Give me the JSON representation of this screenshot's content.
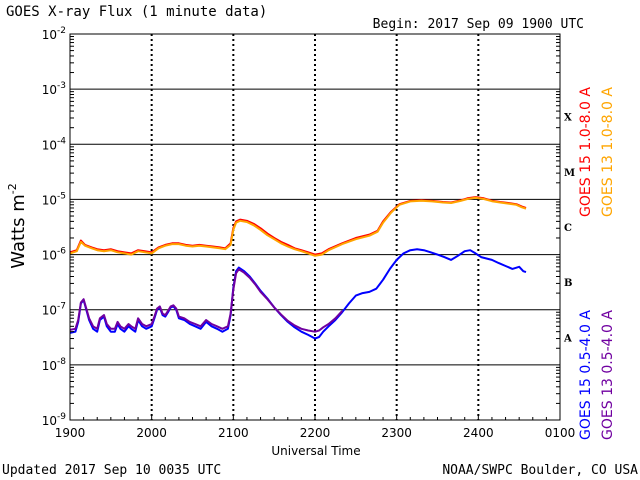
{
  "chart_data": {
    "type": "line",
    "title": "GOES X-ray Flux (1 minute data)",
    "begin_label": "Begin: 2017 Sep 09 1900 UTC",
    "updated_label": "Updated 2017 Sep 10 0035 UTC",
    "credit_label": "NOAA/SWPC Boulder, CO USA",
    "xlabel": "Universal Time",
    "ylabel": "Watts m",
    "ylabel_exponent": "-2",
    "x_ticks": [
      {
        "value": 0,
        "label": "1900"
      },
      {
        "value": 60,
        "label": "2000"
      },
      {
        "value": 120,
        "label": "2100"
      },
      {
        "value": 180,
        "label": "2200"
      },
      {
        "value": 240,
        "label": "2300"
      },
      {
        "value": 300,
        "label": "2400"
      },
      {
        "value": 360,
        "label": "0100"
      }
    ],
    "y_scale": "log",
    "y_ticks": [
      {
        "exp": -9,
        "label": "10",
        "sup": "-9"
      },
      {
        "exp": -8,
        "label": "10",
        "sup": "-8"
      },
      {
        "exp": -7,
        "label": "10",
        "sup": "-7"
      },
      {
        "exp": -6,
        "label": "10",
        "sup": "-6"
      },
      {
        "exp": -5,
        "label": "10",
        "sup": "-5"
      },
      {
        "exp": -4,
        "label": "10",
        "sup": "-4"
      },
      {
        "exp": -3,
        "label": "10",
        "sup": "-3"
      },
      {
        "exp": -2,
        "label": "10",
        "sup": "-2"
      }
    ],
    "flare_classes": [
      {
        "label": "X",
        "exp": -3.5
      },
      {
        "label": "M",
        "exp": -4.5
      },
      {
        "label": "C",
        "exp": -5.5
      },
      {
        "label": "B",
        "exp": -6.5
      },
      {
        "label": "A",
        "exp": -7.5
      }
    ],
    "series": [
      {
        "name": "GOES 15 1.0-8.0 A",
        "color": "#ff0000",
        "points": [
          [
            0,
            1.1e-06
          ],
          [
            5,
            1.2e-06
          ],
          [
            8,
            1.8e-06
          ],
          [
            11,
            1.5e-06
          ],
          [
            16,
            1.35e-06
          ],
          [
            20,
            1.25e-06
          ],
          [
            25,
            1.2e-06
          ],
          [
            30,
            1.25e-06
          ],
          [
            35,
            1.15e-06
          ],
          [
            40,
            1.1e-06
          ],
          [
            45,
            1.05e-06
          ],
          [
            50,
            1.2e-06
          ],
          [
            55,
            1.15e-06
          ],
          [
            60,
            1.1e-06
          ],
          [
            65,
            1.35e-06
          ],
          [
            70,
            1.5e-06
          ],
          [
            75,
            1.6e-06
          ],
          [
            80,
            1.6e-06
          ],
          [
            85,
            1.5e-06
          ],
          [
            90,
            1.45e-06
          ],
          [
            95,
            1.5e-06
          ],
          [
            100,
            1.45e-06
          ],
          [
            105,
            1.4e-06
          ],
          [
            110,
            1.35e-06
          ],
          [
            114,
            1.3e-06
          ],
          [
            118,
            1.6e-06
          ],
          [
            120,
            3e-06
          ],
          [
            122,
            4e-06
          ],
          [
            125,
            4.3e-06
          ],
          [
            130,
            4.1e-06
          ],
          [
            135,
            3.6e-06
          ],
          [
            140,
            3e-06
          ],
          [
            145,
            2.4e-06
          ],
          [
            150,
            2e-06
          ],
          [
            155,
            1.7e-06
          ],
          [
            160,
            1.5e-06
          ],
          [
            165,
            1.3e-06
          ],
          [
            170,
            1.2e-06
          ],
          [
            175,
            1.1e-06
          ],
          [
            180,
            1e-06
          ],
          [
            185,
            1.05e-06
          ],
          [
            190,
            1.25e-06
          ],
          [
            200,
            1.6e-06
          ],
          [
            210,
            2e-06
          ],
          [
            220,
            2.3e-06
          ],
          [
            226,
            2.7e-06
          ],
          [
            230,
            4e-06
          ],
          [
            236,
            6e-06
          ],
          [
            242,
            8.2e-06
          ],
          [
            250,
            9.4e-06
          ],
          [
            258,
            9.7e-06
          ],
          [
            266,
            9.4e-06
          ],
          [
            274,
            9e-06
          ],
          [
            280,
            8.8e-06
          ],
          [
            287,
            9.6e-06
          ],
          [
            292,
            1.05e-05
          ],
          [
            298,
            1.1e-05
          ],
          [
            304,
            1.05e-05
          ],
          [
            310,
            9.5e-06
          ],
          [
            316,
            9e-06
          ],
          [
            322,
            8.6e-06
          ],
          [
            328,
            8.2e-06
          ],
          [
            332,
            7.4e-06
          ],
          [
            335,
            7e-06
          ]
        ]
      },
      {
        "name": "GOES 13 1.0-8.0 A",
        "color": "#ffa500",
        "points": [
          [
            0,
            1.05e-06
          ],
          [
            5,
            1.15e-06
          ],
          [
            8,
            1.7e-06
          ],
          [
            11,
            1.45e-06
          ],
          [
            16,
            1.3e-06
          ],
          [
            20,
            1.2e-06
          ],
          [
            25,
            1.15e-06
          ],
          [
            30,
            1.2e-06
          ],
          [
            35,
            1.1e-06
          ],
          [
            40,
            1.05e-06
          ],
          [
            45,
            1e-06
          ],
          [
            50,
            1.15e-06
          ],
          [
            55,
            1.1e-06
          ],
          [
            60,
            1.05e-06
          ],
          [
            65,
            1.3e-06
          ],
          [
            70,
            1.45e-06
          ],
          [
            75,
            1.55e-06
          ],
          [
            80,
            1.55e-06
          ],
          [
            85,
            1.45e-06
          ],
          [
            90,
            1.4e-06
          ],
          [
            95,
            1.45e-06
          ],
          [
            100,
            1.4e-06
          ],
          [
            105,
            1.35e-06
          ],
          [
            110,
            1.3e-06
          ],
          [
            114,
            1.25e-06
          ],
          [
            118,
            1.5e-06
          ],
          [
            120,
            2.8e-06
          ],
          [
            122,
            3.8e-06
          ],
          [
            125,
            4.1e-06
          ],
          [
            130,
            3.9e-06
          ],
          [
            135,
            3.4e-06
          ],
          [
            140,
            2.8e-06
          ],
          [
            145,
            2.25e-06
          ],
          [
            150,
            1.9e-06
          ],
          [
            155,
            1.6e-06
          ],
          [
            160,
            1.4e-06
          ],
          [
            165,
            1.25e-06
          ],
          [
            170,
            1.15e-06
          ],
          [
            175,
            1.05e-06
          ],
          [
            180,
            9.5e-07
          ],
          [
            185,
            1e-06
          ],
          [
            190,
            1.2e-06
          ],
          [
            200,
            1.55e-06
          ],
          [
            210,
            1.9e-06
          ],
          [
            220,
            2.2e-06
          ],
          [
            226,
            2.6e-06
          ],
          [
            230,
            3.8e-06
          ],
          [
            236,
            5.8e-06
          ],
          [
            242,
            8e-06
          ],
          [
            250,
            9.2e-06
          ],
          [
            258,
            9.5e-06
          ],
          [
            266,
            9.2e-06
          ],
          [
            274,
            8.8e-06
          ],
          [
            280,
            8.6e-06
          ],
          [
            287,
            9.4e-06
          ],
          [
            292,
            1.02e-05
          ],
          [
            298,
            1.07e-05
          ],
          [
            304,
            1.02e-05
          ],
          [
            310,
            9.3e-06
          ],
          [
            316,
            8.8e-06
          ],
          [
            322,
            8.4e-06
          ],
          [
            328,
            8e-06
          ],
          [
            332,
            7.2e-06
          ],
          [
            335,
            6.8e-06
          ]
        ]
      },
      {
        "name": "GOES 15 0.5-4.0 A",
        "color": "#0000ff",
        "points": [
          [
            0,
            3.8e-08
          ],
          [
            4,
            4e-08
          ],
          [
            6,
            6e-08
          ],
          [
            8,
            1.3e-07
          ],
          [
            10,
            1.5e-07
          ],
          [
            12,
            1e-07
          ],
          [
            14,
            6.5e-08
          ],
          [
            17,
            4.5e-08
          ],
          [
            20,
            4e-08
          ],
          [
            22,
            6.5e-08
          ],
          [
            25,
            7.5e-08
          ],
          [
            27,
            5e-08
          ],
          [
            30,
            4e-08
          ],
          [
            33,
            4e-08
          ],
          [
            35,
            5.5e-08
          ],
          [
            37,
            4.5e-08
          ],
          [
            40,
            4e-08
          ],
          [
            43,
            5e-08
          ],
          [
            45,
            4.5e-08
          ],
          [
            48,
            4e-08
          ],
          [
            50,
            6.5e-08
          ],
          [
            53,
            5e-08
          ],
          [
            56,
            4.5e-08
          ],
          [
            60,
            5e-08
          ],
          [
            62,
            7e-08
          ],
          [
            64,
            1e-07
          ],
          [
            66,
            1.1e-07
          ],
          [
            68,
            8e-08
          ],
          [
            70,
            7.5e-08
          ],
          [
            72,
            9e-08
          ],
          [
            74,
            1.1e-07
          ],
          [
            76,
            1.15e-07
          ],
          [
            78,
            1e-07
          ],
          [
            80,
            7e-08
          ],
          [
            84,
            6.5e-08
          ],
          [
            88,
            5.5e-08
          ],
          [
            92,
            5e-08
          ],
          [
            96,
            4.5e-08
          ],
          [
            100,
            6e-08
          ],
          [
            104,
            5e-08
          ],
          [
            108,
            4.5e-08
          ],
          [
            112,
            4e-08
          ],
          [
            116,
            4.5e-08
          ],
          [
            118,
            8e-08
          ],
          [
            120,
            2.5e-07
          ],
          [
            122,
            5e-07
          ],
          [
            124,
            5.8e-07
          ],
          [
            128,
            5e-07
          ],
          [
            132,
            4e-07
          ],
          [
            136,
            3e-07
          ],
          [
            140,
            2.2e-07
          ],
          [
            145,
            1.6e-07
          ],
          [
            150,
            1.1e-07
          ],
          [
            155,
            8e-08
          ],
          [
            160,
            6e-08
          ],
          [
            165,
            4.8e-08
          ],
          [
            170,
            4e-08
          ],
          [
            175,
            3.5e-08
          ],
          [
            180,
            3e-08
          ],
          [
            183,
            3.2e-08
          ],
          [
            186,
            4e-08
          ],
          [
            190,
            5e-08
          ],
          [
            195,
            6.5e-08
          ],
          [
            200,
            9e-08
          ],
          [
            205,
            1.3e-07
          ],
          [
            210,
            1.8e-07
          ],
          [
            215,
            2e-07
          ],
          [
            220,
            2.1e-07
          ],
          [
            225,
            2.4e-07
          ],
          [
            230,
            3.5e-07
          ],
          [
            235,
            5.5e-07
          ],
          [
            240,
            8e-07
          ],
          [
            245,
            1.05e-06
          ],
          [
            250,
            1.2e-06
          ],
          [
            255,
            1.25e-06
          ],
          [
            260,
            1.2e-06
          ],
          [
            265,
            1.1e-06
          ],
          [
            270,
            1e-06
          ],
          [
            275,
            9e-07
          ],
          [
            280,
            8e-07
          ],
          [
            285,
            9.5e-07
          ],
          [
            290,
            1.15e-06
          ],
          [
            294,
            1.2e-06
          ],
          [
            298,
            1.05e-06
          ],
          [
            302,
            9e-07
          ],
          [
            306,
            8.5e-07
          ],
          [
            310,
            8e-07
          ],
          [
            315,
            7e-07
          ],
          [
            320,
            6.2e-07
          ],
          [
            325,
            5.5e-07
          ],
          [
            330,
            6e-07
          ],
          [
            333,
            5e-07
          ],
          [
            335,
            4.8e-07
          ]
        ]
      },
      {
        "name": "GOES 13 0.5-4.0 A",
        "color": "#7000a0",
        "points": [
          [
            0,
            4.3e-08
          ],
          [
            4,
            4.5e-08
          ],
          [
            6,
            6.5e-08
          ],
          [
            8,
            1.35e-07
          ],
          [
            10,
            1.55e-07
          ],
          [
            12,
            1.05e-07
          ],
          [
            14,
            7e-08
          ],
          [
            17,
            5e-08
          ],
          [
            20,
            4.5e-08
          ],
          [
            22,
            7e-08
          ],
          [
            25,
            8e-08
          ],
          [
            27,
            5.5e-08
          ],
          [
            30,
            4.5e-08
          ],
          [
            33,
            4.5e-08
          ],
          [
            35,
            6e-08
          ],
          [
            37,
            5e-08
          ],
          [
            40,
            4.5e-08
          ],
          [
            43,
            5.5e-08
          ],
          [
            45,
            5e-08
          ],
          [
            48,
            4.5e-08
          ],
          [
            50,
            7e-08
          ],
          [
            53,
            5.5e-08
          ],
          [
            56,
            5e-08
          ],
          [
            60,
            5.5e-08
          ],
          [
            62,
            7.5e-08
          ],
          [
            64,
            1.05e-07
          ],
          [
            66,
            1.15e-07
          ],
          [
            68,
            8.5e-08
          ],
          [
            70,
            8e-08
          ],
          [
            72,
            9.5e-08
          ],
          [
            74,
            1.15e-07
          ],
          [
            76,
            1.2e-07
          ],
          [
            78,
            1.05e-07
          ],
          [
            80,
            7.5e-08
          ],
          [
            84,
            7e-08
          ],
          [
            88,
            6e-08
          ],
          [
            92,
            5.5e-08
          ],
          [
            96,
            5e-08
          ],
          [
            100,
            6.5e-08
          ],
          [
            104,
            5.5e-08
          ],
          [
            108,
            5e-08
          ],
          [
            112,
            4.5e-08
          ],
          [
            116,
            5e-08
          ],
          [
            118,
            8.5e-08
          ],
          [
            120,
            2.3e-07
          ],
          [
            122,
            4.6e-07
          ],
          [
            124,
            5.4e-07
          ],
          [
            128,
            4.7e-07
          ],
          [
            132,
            3.8e-07
          ],
          [
            136,
            2.9e-07
          ],
          [
            140,
            2.1e-07
          ],
          [
            145,
            1.55e-07
          ],
          [
            150,
            1.1e-07
          ],
          [
            155,
            8.2e-08
          ],
          [
            160,
            6.3e-08
          ],
          [
            165,
            5.2e-08
          ],
          [
            170,
            4.5e-08
          ],
          [
            175,
            4.2e-08
          ],
          [
            180,
            4e-08
          ],
          [
            183,
            4.2e-08
          ],
          [
            186,
            4.8e-08
          ],
          [
            190,
            5.5e-08
          ],
          [
            195,
            7e-08
          ],
          [
            200,
            9.5e-08
          ]
        ]
      }
    ]
  }
}
